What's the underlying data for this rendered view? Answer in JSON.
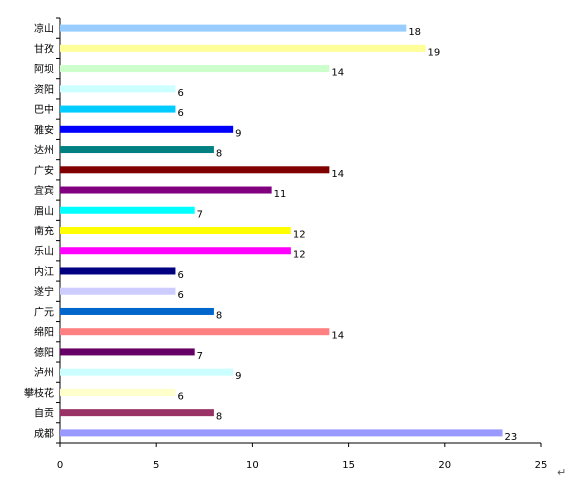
{
  "chart_data": {
    "type": "bar",
    "orientation": "horizontal",
    "categories": [
      "凉山",
      "甘孜",
      "阿坝",
      "资阳",
      "巴中",
      "雅安",
      "达州",
      "广安",
      "宜宾",
      "眉山",
      "南充",
      "乐山",
      "内江",
      "遂宁",
      "广元",
      "绵阳",
      "德阳",
      "泸州",
      "攀枝花",
      "自贡",
      "成都"
    ],
    "values": [
      18,
      19,
      14,
      6,
      6,
      9,
      8,
      14,
      11,
      7,
      12,
      12,
      6,
      6,
      8,
      14,
      7,
      9,
      6,
      8,
      23
    ],
    "colors": [
      "#99ccff",
      "#ffff99",
      "#ccffcc",
      "#ccffff",
      "#00ccff",
      "#0000ff",
      "#008080",
      "#800000",
      "#800080",
      "#00ffff",
      "#ffff00",
      "#ff00ff",
      "#000080",
      "#ccccff",
      "#0066cc",
      "#ff8080",
      "#660066",
      "#ccffff",
      "#ffffcc",
      "#993366",
      "#9999ff"
    ],
    "xlim": [
      0,
      25
    ],
    "xticks": [
      0,
      5,
      10,
      15,
      20,
      25
    ],
    "data_labels": true,
    "grid": false,
    "legend": "none",
    "title": "",
    "xlabel": "",
    "ylabel": ""
  },
  "paragraph_mark": "↵"
}
